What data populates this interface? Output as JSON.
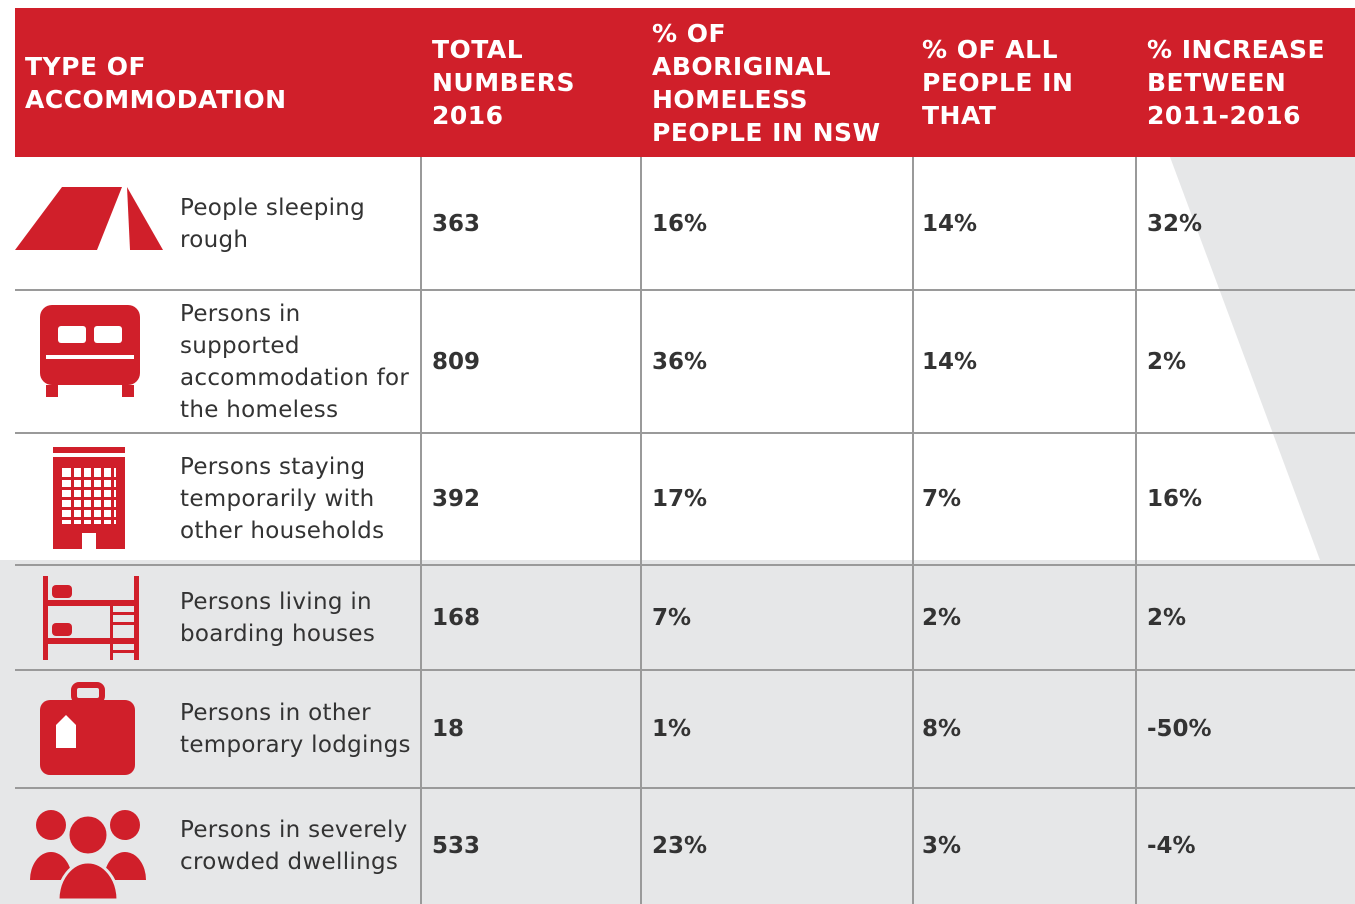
{
  "table": {
    "header": [
      "TYPE OF ACCOMMODATION",
      "TOTAL NUMBERS 2016",
      "% OF ABORIGINAL HOMELESS PEOPLE IN NSW",
      "% OF ALL PEOPLE IN THAT",
      "% INCREASE BETWEEN 2011-2016"
    ],
    "rows": [
      [
        "People sleeping rough",
        "363",
        "16%",
        "14%",
        "32%"
      ],
      [
        "Persons in supported accommodation for the homeless",
        "809",
        "36%",
        "14%",
        "2%"
      ],
      [
        "Persons staying temporarily with other households",
        "392",
        "17%",
        "7%",
        "16%"
      ],
      [
        "Persons living in boarding houses",
        "168",
        "7%",
        "2%",
        "2%"
      ],
      [
        "Persons in other temporary lodgings",
        "18",
        "1%",
        "8%",
        "-50%"
      ],
      [
        "Persons in severely crowded dwellings",
        "533",
        "23%",
        "3%",
        "-4%"
      ]
    ]
  }
}
